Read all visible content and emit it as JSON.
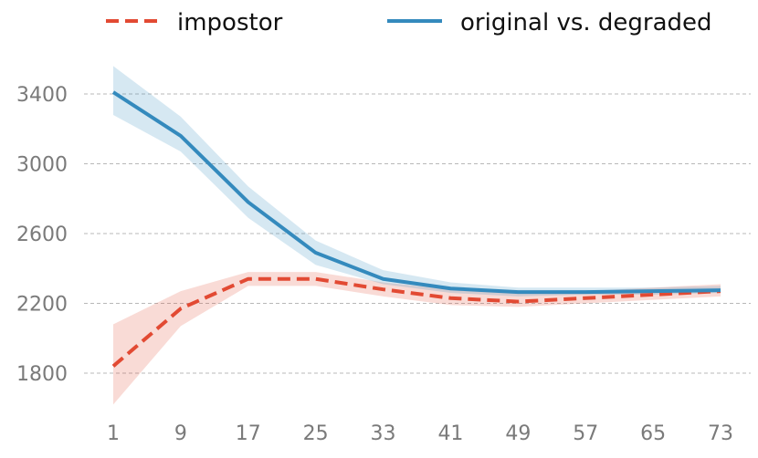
{
  "chart_data": {
    "type": "line",
    "title": "",
    "xlabel": "",
    "ylabel": "",
    "x": [
      1,
      9,
      17,
      25,
      33,
      41,
      49,
      57,
      65,
      73
    ],
    "xticks": [
      "1",
      "9",
      "17",
      "25",
      "33",
      "41",
      "49",
      "57",
      "65",
      "73"
    ],
    "yticks": [
      1800,
      2200,
      2600,
      3000,
      3400
    ],
    "ytick_labels": [
      "1800",
      "2200",
      "2600",
      "3000",
      "3400"
    ],
    "ylim": [
      1580,
      3660
    ],
    "grid": "horizontal dashed",
    "legend_position": "top",
    "series": [
      {
        "name": "impostor",
        "color": "#e24a33",
        "line_style": "dashed",
        "values": [
          1840,
          2170,
          2340,
          2340,
          2280,
          2230,
          2210,
          2230,
          2250,
          2270
        ],
        "band_low": [
          1620,
          2070,
          2300,
          2300,
          2240,
          2190,
          2180,
          2200,
          2220,
          2240
        ],
        "band_high": [
          2080,
          2270,
          2380,
          2380,
          2320,
          2280,
          2260,
          2270,
          2290,
          2310
        ]
      },
      {
        "name": "original vs. degraded",
        "color": "#348abd",
        "line_style": "solid",
        "values": [
          3410,
          3160,
          2780,
          2490,
          2340,
          2285,
          2265,
          2265,
          2270,
          2275
        ],
        "band_low": [
          3280,
          3070,
          2690,
          2420,
          2310,
          2260,
          2240,
          2250,
          2250,
          2260
        ],
        "band_high": [
          3560,
          3270,
          2870,
          2560,
          2390,
          2320,
          2290,
          2290,
          2290,
          2300
        ]
      }
    ]
  }
}
